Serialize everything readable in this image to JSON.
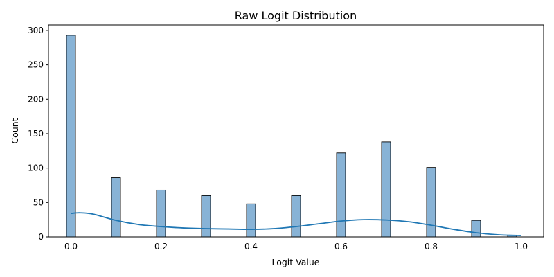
{
  "chart_data": {
    "type": "bar",
    "title": "Raw Logit Distribution",
    "xlabel": "Logit Value",
    "ylabel": "Count",
    "xlim": [
      -0.05,
      1.05
    ],
    "ylim": [
      0,
      308
    ],
    "xticks": [
      0.0,
      0.2,
      0.4,
      0.6,
      0.8,
      1.0
    ],
    "xtick_labels": [
      "0.0",
      "0.2",
      "0.4",
      "0.6",
      "0.8",
      "1.0"
    ],
    "yticks": [
      0,
      50,
      100,
      150,
      200,
      250,
      300
    ],
    "ytick_labels": [
      "0",
      "50",
      "100",
      "150",
      "200",
      "250",
      "300"
    ],
    "bin_width": 0.02,
    "bars": [
      {
        "x": 0.0,
        "count": 293
      },
      {
        "x": 0.1,
        "count": 86
      },
      {
        "x": 0.2,
        "count": 68
      },
      {
        "x": 0.3,
        "count": 60
      },
      {
        "x": 0.4,
        "count": 48
      },
      {
        "x": 0.5,
        "count": 60
      },
      {
        "x": 0.6,
        "count": 122
      },
      {
        "x": 0.7,
        "count": 138
      },
      {
        "x": 0.8,
        "count": 101
      },
      {
        "x": 0.9,
        "count": 24
      },
      {
        "x": 0.98,
        "count": 2
      }
    ],
    "kde_curve": {
      "x": [
        0.0,
        0.02,
        0.05,
        0.1,
        0.15,
        0.2,
        0.25,
        0.3,
        0.35,
        0.4,
        0.45,
        0.5,
        0.55,
        0.6,
        0.65,
        0.7,
        0.75,
        0.8,
        0.85,
        0.9,
        0.95,
        1.0
      ],
      "y": [
        34,
        35,
        33,
        24,
        18,
        15,
        13,
        12,
        11.5,
        11,
        12,
        15,
        19,
        23,
        25,
        24.5,
        22,
        17,
        11,
        6,
        3,
        2
      ]
    },
    "colors": {
      "bar_fill": "#88b3d6",
      "bar_edge": "#000000",
      "kde_line": "#1f77b4"
    },
    "grid": false,
    "legend": "none"
  }
}
